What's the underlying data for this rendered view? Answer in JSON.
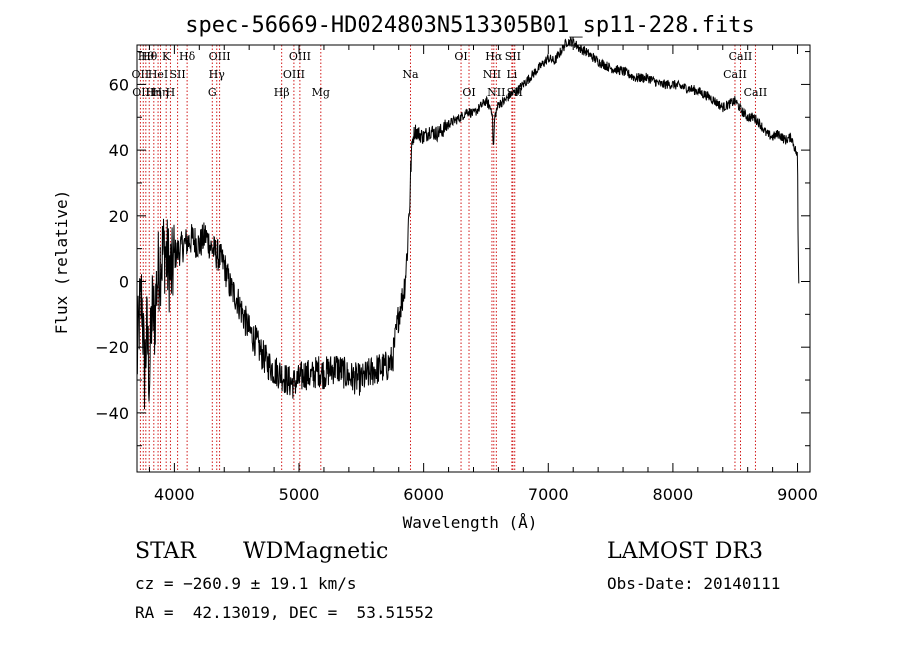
{
  "chart_data": {
    "type": "line",
    "title": "spec-56669-HD024803N513305B01_sp11-228.fits",
    "xlabel": "Wavelength (Å)",
    "ylabel": "Flux (relative)",
    "xlim": [
      3700,
      9100
    ],
    "ylim": [
      -58,
      72
    ],
    "xticks": [
      4000,
      5000,
      6000,
      7000,
      8000,
      9000
    ],
    "yticks": [
      -40,
      -20,
      0,
      20,
      40,
      60
    ],
    "grid": false,
    "series": [
      {
        "x": [
          3700,
          3720,
          3740,
          3760,
          3780,
          3800,
          3820,
          3840,
          3860,
          3880,
          3900,
          3920,
          3950,
          3980,
          4000,
          4050,
          4100,
          4150,
          4200,
          4250,
          4300,
          4350,
          4400,
          4450,
          4500,
          4550,
          4600,
          4650,
          4700,
          4750,
          4800,
          4850,
          4900,
          4950,
          5000,
          5050,
          5100,
          5150,
          5200,
          5300,
          5400,
          5500,
          5600,
          5700,
          5750,
          5800,
          5830,
          5850,
          5870,
          5880,
          5890,
          5900,
          5910,
          5930,
          5960,
          6000,
          6050,
          6100,
          6150,
          6200,
          6250,
          6300,
          6350,
          6400,
          6450,
          6500,
          6550,
          6560,
          6570,
          6600,
          6650,
          6700,
          6750,
          6800,
          6850,
          6900,
          6950,
          7000,
          7050,
          7100,
          7150,
          7200,
          7250,
          7300,
          7400,
          7500,
          7600,
          7700,
          7800,
          7900,
          8000,
          8100,
          8200,
          8300,
          8400,
          8450,
          8500,
          8550,
          8600,
          8650,
          8700,
          8750,
          8800,
          8850,
          8900,
          8950,
          9000,
          9005,
          9010
        ],
        "y": [
          -25,
          -10,
          -5,
          -28,
          -15,
          -30,
          -8,
          -12,
          0,
          5,
          8,
          10,
          5,
          2,
          8,
          10,
          12,
          13,
          11,
          14,
          10,
          8,
          5,
          -2,
          -5,
          -10,
          -15,
          -18,
          -22,
          -25,
          -27,
          -28,
          -30,
          -31,
          -30,
          -28,
          -29,
          -27,
          -28,
          -26,
          -29,
          -30,
          -27,
          -26,
          -24,
          -10,
          -5,
          0,
          10,
          20,
          25,
          38,
          43,
          46,
          45,
          44,
          46,
          45,
          46,
          48,
          49,
          50,
          52,
          51,
          53,
          55,
          52,
          40,
          50,
          54,
          55,
          57,
          58,
          60,
          62,
          64,
          66,
          68,
          67,
          70,
          73,
          73,
          71,
          70,
          67,
          65,
          64,
          62,
          62,
          60,
          60,
          59,
          58,
          56,
          53,
          54,
          55,
          52,
          50,
          50,
          48,
          45,
          44,
          45,
          43,
          44,
          38,
          10,
          0
        ]
      }
    ],
    "lines": [
      {
        "wl": 3727,
        "label": "OII",
        "row": 1
      },
      {
        "wl": 3750,
        "label": "OIII",
        "row": 2
      },
      {
        "wl": 3771,
        "label": "Hθ",
        "row": 0
      },
      {
        "wl": 3798,
        "label": "Hθ",
        "row": 0
      },
      {
        "wl": 3835,
        "label": "Hη",
        "row": 2
      },
      {
        "wl": 3869,
        "label": "HeI",
        "row": 1
      },
      {
        "wl": 3889,
        "label": "Hη",
        "row": 2
      },
      {
        "wl": 3934,
        "label": "K",
        "row": 0
      },
      {
        "wl": 3968,
        "label": "H",
        "row": 2
      },
      {
        "wl": 4026,
        "label": "SII",
        "row": 1
      },
      {
        "wl": 4102,
        "label": "Hδ",
        "row": 0
      },
      {
        "wl": 4304,
        "label": "G",
        "row": 2
      },
      {
        "wl": 4340,
        "label": "Hγ",
        "row": 1
      },
      {
        "wl": 4363,
        "label": "OIII",
        "row": 0
      },
      {
        "wl": 4861,
        "label": "Hβ",
        "row": 2
      },
      {
        "wl": 4959,
        "label": "OIII",
        "row": 1
      },
      {
        "wl": 5007,
        "label": "OIII",
        "row": 0
      },
      {
        "wl": 5175,
        "label": "Mg",
        "row": 2
      },
      {
        "wl": 5894,
        "label": "Na",
        "row": 1
      },
      {
        "wl": 6300,
        "label": "OI",
        "row": 0
      },
      {
        "wl": 6364,
        "label": "OI",
        "row": 2
      },
      {
        "wl": 6548,
        "label": "NII",
        "row": 1
      },
      {
        "wl": 6563,
        "label": "Hα",
        "row": 0
      },
      {
        "wl": 6583,
        "label": "NII",
        "row": 2
      },
      {
        "wl": 6708,
        "label": "Li",
        "row": 1
      },
      {
        "wl": 6716,
        "label": "SII",
        "row": 0
      },
      {
        "wl": 6731,
        "label": "SII",
        "row": 2
      },
      {
        "wl": 8498,
        "label": "CaII",
        "row": 1
      },
      {
        "wl": 8542,
        "label": "CaII",
        "row": 0
      },
      {
        "wl": 8662,
        "label": "CaII",
        "row": 2
      }
    ]
  },
  "info": {
    "obj_class": "STAR",
    "subclass": "WDMagnetic",
    "survey": "LAMOST DR3",
    "cz": "cz = −260.9 ± 19.1 km/s",
    "obs_date": "Obs-Date: 20140111",
    "radec": "RA =  42.13019, DEC =  53.51552"
  }
}
